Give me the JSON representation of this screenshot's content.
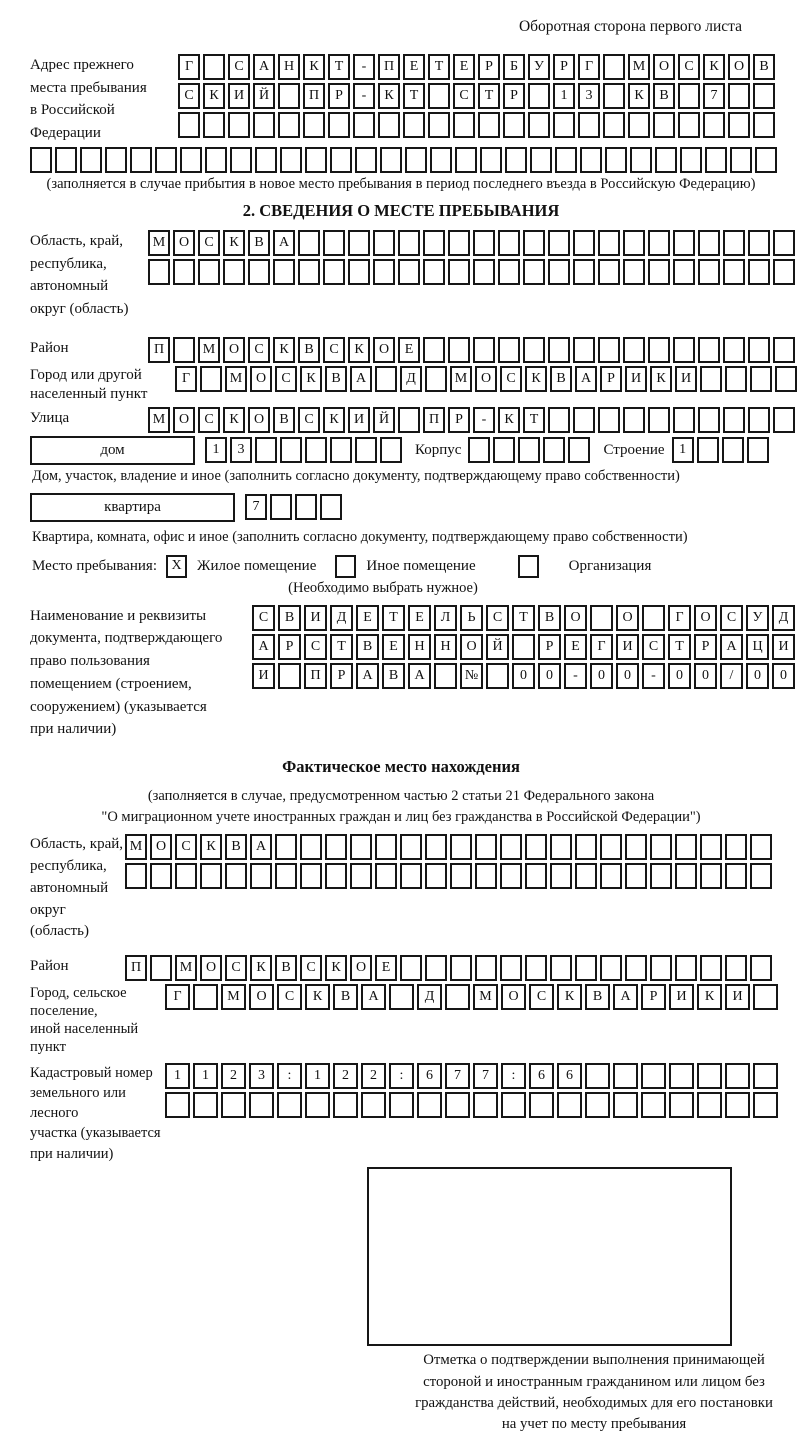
{
  "page": {
    "header_note": "Оборотная сторона первого листа",
    "ink_color": "#161616",
    "paper_color": "#ffffff"
  },
  "prev_address": {
    "label": "Адрес прежнего\nместа пребывания\nв Российской\nФедерации",
    "rows": [
      {
        "text": "Г САНКТ-ПЕТЕРБУРГ МОСКОВ",
        "cells": 24
      },
      {
        "text": "СКИЙ ПР-КТ СТР 13 КВ 7",
        "cells": 24
      },
      {
        "text": "",
        "cells": 24
      },
      {
        "text": "",
        "cells": 30
      }
    ],
    "note": "(заполняется в случае прибытия в новое место пребывания в период последнего въезда в Российскую Федерацию)"
  },
  "section2": {
    "title": "2. СВЕДЕНИЯ О МЕСТЕ ПРЕБЫВАНИЯ",
    "region": {
      "label": "Область, край,\nреспублика,\nавтономный\nокруг (область)",
      "rows": [
        {
          "text": "МОСКВА",
          "cells": 26
        },
        {
          "text": "",
          "cells": 26
        }
      ]
    },
    "district": {
      "label": "Район",
      "row": {
        "text": "П МОСКВСКОЕ",
        "cells": 26
      }
    },
    "city": {
      "label": "Город или другой\nнаселенный пункт",
      "row": {
        "text": "Г МОСКВА Д МОСКВАРИКИ",
        "cells": 25
      }
    },
    "street": {
      "label": "Улица",
      "row": {
        "text": "МОСКОВСКИЙ ПР-КТ",
        "cells": 26
      }
    },
    "house": {
      "box_label": "дом",
      "number": {
        "text": "13",
        "cells": 8
      },
      "korpus_label": "Корпус",
      "korpus": {
        "text": "",
        "cells": 5
      },
      "stroenie_label": "Строение",
      "stroenie": {
        "text": "1",
        "cells": 4
      },
      "caption": "Дом, участок, владение и иное (заполнить согласно документу, подтверждающему право собственности)"
    },
    "apartment": {
      "box_label": "квартира",
      "number": {
        "text": "7",
        "cells": 4
      },
      "caption": "Квартира, комната, офис и иное (заполнить согласно документу, подтверждающему право собственности)"
    },
    "stay_type": {
      "label": "Место пребывания:",
      "options": [
        {
          "label": "Жилое помещение",
          "checked": "X"
        },
        {
          "label": "Иное помещение",
          "checked": ""
        },
        {
          "label": "Организация",
          "checked": ""
        }
      ],
      "note": "(Необходимо выбрать нужное)"
    },
    "document": {
      "label": "Наименование и реквизиты\nдокумента, подтверждающего\nправо пользования\nпомещением (строением,\nсооружением) (указывается\nпри наличии)",
      "rows": [
        {
          "text": "СВИДЕТЕЛЬСТВО О ГОСУД",
          "cells": 21
        },
        {
          "text": "АРСТВЕННОЙ РЕГИСТРАЦИ",
          "cells": 21
        },
        {
          "text": "И ПРАВА № 00-00-00/000",
          "cells": 21
        }
      ]
    }
  },
  "actual_location": {
    "title": "Фактическое место нахождения",
    "note": "(заполняется в случае, предусмотренном частью 2 статьи 21 Федерального закона\n\"О миграционном учете иностранных граждан и лиц без гражданства в Российской Федерации\")",
    "region": {
      "label": "Область, край,\nреспублика,\nавтономный округ\n(область)",
      "rows": [
        {
          "text": "МОСКВА",
          "cells": 26
        },
        {
          "text": "",
          "cells": 26
        }
      ]
    },
    "district": {
      "label": "Район",
      "row": {
        "text": "П МОСКВСКОЕ",
        "cells": 26
      }
    },
    "city": {
      "label": "Город, сельское поселение,\nиной населенный пункт",
      "row": {
        "text": "Г МОСКВА Д МОСКВАРИКИ",
        "cells": 22
      }
    },
    "cadastre": {
      "label": "Кадастровый номер\nземельного или лесного\nучастка (указывается\nпри наличии)",
      "rows": [
        {
          "text": "1123:122:677:66",
          "cells": 22
        },
        {
          "text": "",
          "cells": 22
        }
      ]
    },
    "stamp_caption": "Отметка о подтверждении выполнения принимающей\nстороной и иностранным гражданином или лицом без\nгражданства действий, необходимых для его постановки\nна учет по месту пребывания"
  }
}
